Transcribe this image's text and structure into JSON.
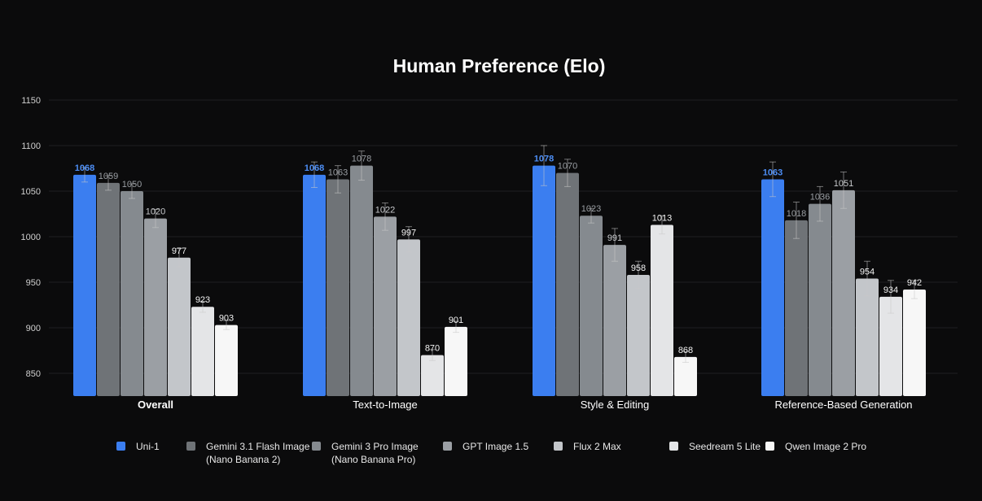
{
  "chart_data": {
    "type": "bar",
    "title": "Human Preference (Elo)",
    "categories": [
      "Overall",
      "Text-to-Image",
      "Style & Editing",
      "Reference-Based Generation"
    ],
    "ylim": [
      825,
      1150
    ],
    "yticks": [
      850,
      900,
      950,
      1000,
      1050,
      1100,
      1150
    ],
    "grid": true,
    "legend_position": "bottom",
    "series": [
      {
        "name": "Uni-1",
        "color": "#3b7ef0",
        "values": [
          1068,
          1068,
          1078,
          1063
        ],
        "err": [
          8,
          14,
          22,
          19
        ]
      },
      {
        "name": "Gemini 3.1 Flash Image (Nano Banana 2)",
        "color": "#6f7377",
        "values": [
          1059,
          1063,
          1070,
          1018
        ],
        "err": [
          8,
          15,
          15,
          20
        ]
      },
      {
        "name": "Gemini 3 Pro Image (Nano Banana Pro)",
        "color": "#858a8f",
        "values": [
          1050,
          1078,
          1023,
          1036
        ],
        "err": [
          8,
          16,
          8,
          19
        ]
      },
      {
        "name": "GPT Image 1.5",
        "color": "#9b9fa4",
        "values": [
          1020,
          1022,
          991,
          1051
        ],
        "err": [
          10,
          15,
          18,
          20
        ]
      },
      {
        "name": "Flux 2 Max",
        "color": "#c3c6ca",
        "values": [
          977,
          997,
          958,
          954
        ],
        "err": [
          10,
          14,
          15,
          19
        ]
      },
      {
        "name": "Seedream 5 Lite",
        "color": "#e4e5e7",
        "values": [
          923,
          870,
          1013,
          934
        ],
        "err": [
          6,
          6,
          10,
          18
        ]
      },
      {
        "name": "Qwen Image 2 Pro",
        "color": "#f7f7f7",
        "values": [
          903,
          901,
          868,
          942
        ],
        "err": [
          5,
          6,
          6,
          10
        ]
      }
    ]
  },
  "legend": [
    {
      "line1": "Uni-1",
      "line2": ""
    },
    {
      "line1": "Gemini 3.1 Flash Image",
      "line2": "(Nano Banana 2)"
    },
    {
      "line1": "Gemini 3 Pro Image",
      "line2": "(Nano Banana Pro)"
    },
    {
      "line1": "GPT Image 1.5",
      "line2": ""
    },
    {
      "line1": "Flux 2 Max",
      "line2": ""
    },
    {
      "line1": "Seedream 5 Lite",
      "line2": ""
    },
    {
      "line1": "Qwen Image 2 Pro",
      "line2": ""
    }
  ]
}
